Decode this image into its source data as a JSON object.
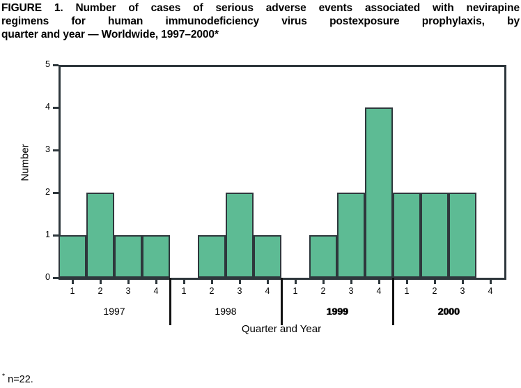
{
  "title": {
    "lines": [
      "FIGURE 1. Number of cases of serious adverse events associated with nevirapine",
      "regimens for human immunodeficiency virus postexposure prophylaxis, by",
      "quarter and year — Worldwide, 1997–2000*"
    ]
  },
  "chart_data": {
    "type": "bar",
    "title": "Number of cases of serious adverse events associated with nevirapine regimens for HIV postexposure prophylaxis, by quarter and year, Worldwide, 1997-2000",
    "xlabel": "Quarter and Year",
    "ylabel": "Number",
    "ylim": [
      0,
      5
    ],
    "yticks": [
      0,
      1,
      2,
      3,
      4,
      5
    ],
    "grid": false,
    "legend": null,
    "bar_color": "#5DBB94",
    "line_color": "#2E373C",
    "divider_color": "#111111",
    "groups": [
      {
        "year": "1997",
        "bold": false,
        "quarters": [
          "1",
          "2",
          "3",
          "4"
        ],
        "values": [
          1,
          2,
          1,
          1
        ]
      },
      {
        "year": "1998",
        "bold": false,
        "quarters": [
          "1",
          "2",
          "3",
          "4"
        ],
        "values": [
          0,
          1,
          2,
          1
        ]
      },
      {
        "year": "1999",
        "bold": true,
        "quarters": [
          "1",
          "2",
          "3",
          "4"
        ],
        "values": [
          0,
          1,
          2,
          4
        ]
      },
      {
        "year": "2000",
        "bold": true,
        "quarters": [
          "1",
          "2",
          "3",
          "4"
        ],
        "values": [
          2,
          2,
          2,
          0
        ]
      }
    ]
  },
  "footnote": {
    "marker": "*",
    "text": "n=22."
  }
}
